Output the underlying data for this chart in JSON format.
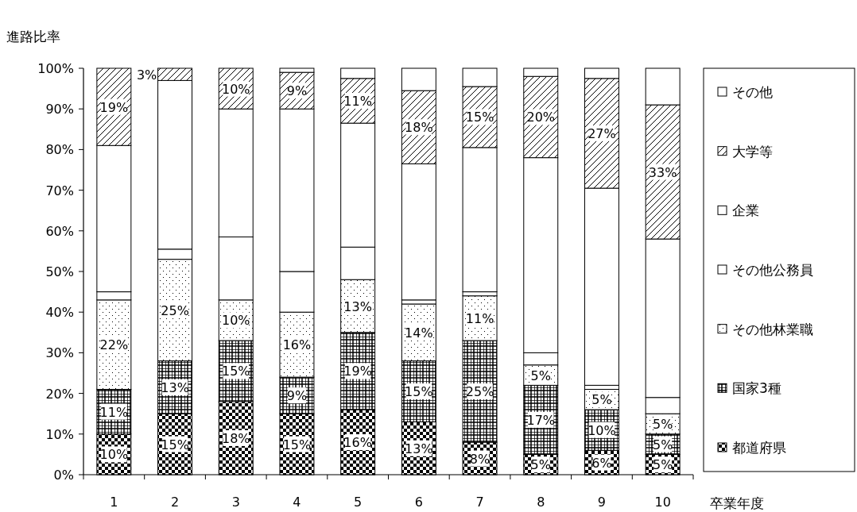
{
  "chart_data": {
    "type": "bar",
    "stacked": true,
    "ylabel": "進路比率",
    "xlabel": "卒業年度",
    "categories": [
      "1",
      "2",
      "3",
      "4",
      "5",
      "6",
      "7",
      "8",
      "9",
      "10"
    ],
    "ylim": [
      0,
      100
    ],
    "yticks": [
      {
        "value": 0,
        "label": "0%"
      },
      {
        "value": 10,
        "label": "10%"
      },
      {
        "value": 20,
        "label": "20%"
      },
      {
        "value": 30,
        "label": "30%"
      },
      {
        "value": 40,
        "label": "40%"
      },
      {
        "value": 50,
        "label": "50%"
      },
      {
        "value": 60,
        "label": "60%"
      },
      {
        "value": 70,
        "label": "70%"
      },
      {
        "value": 80,
        "label": "80%"
      },
      {
        "value": 90,
        "label": "90%"
      },
      {
        "value": 100,
        "label": "100%"
      }
    ],
    "legend": "right",
    "grid": false,
    "series": [
      {
        "name": "都道府県",
        "color": "#000000",
        "values": [
          10,
          15,
          18,
          15,
          16,
          13,
          8,
          5,
          6,
          5
        ],
        "value_labels": [
          "10%",
          "15%",
          "18%",
          "15%",
          "16%",
          "13%",
          "8%",
          "5%",
          "6%",
          "5%"
        ]
      },
      {
        "name": "国家3種",
        "color": "#000000",
        "values": [
          11,
          13,
          15,
          9,
          19,
          15,
          25,
          17,
          10,
          5
        ],
        "value_labels": [
          "11%",
          "13%",
          "15%",
          "9%",
          "19%",
          "15%",
          "25%",
          "17%",
          "10%",
          "5%"
        ]
      },
      {
        "name": "その他林業職",
        "color": "#000000",
        "values": [
          22,
          25,
          10,
          16,
          13,
          14,
          11,
          5,
          5,
          5
        ],
        "value_labels": [
          "22%",
          "25%",
          "10%",
          "16%",
          "13%",
          "14%",
          "11%",
          "5%",
          "5%",
          "5%"
        ]
      },
      {
        "name": "その他公務員",
        "color": "#ffffff",
        "values": [
          2,
          2.5,
          15.5,
          10,
          8,
          1,
          1,
          3,
          1,
          4
        ]
      },
      {
        "name": "企業",
        "color": "#ffffff",
        "values": [
          36,
          41.5,
          31.5,
          40,
          30.5,
          33.5,
          35.5,
          48,
          48.5,
          39
        ]
      },
      {
        "name": "大学等",
        "color": "#000000",
        "values": [
          19,
          3,
          10,
          9,
          11,
          18,
          15,
          20,
          27,
          33
        ],
        "value_labels": [
          "19%",
          "3%",
          "10%",
          "9%",
          "11%",
          "18%",
          "15%",
          "20%",
          "27%",
          "33%"
        ]
      },
      {
        "name": "その他",
        "color": "#ffffff",
        "values": [
          0,
          0,
          0,
          1,
          2.5,
          5.5,
          4.5,
          2,
          2.5,
          9
        ]
      }
    ]
  }
}
